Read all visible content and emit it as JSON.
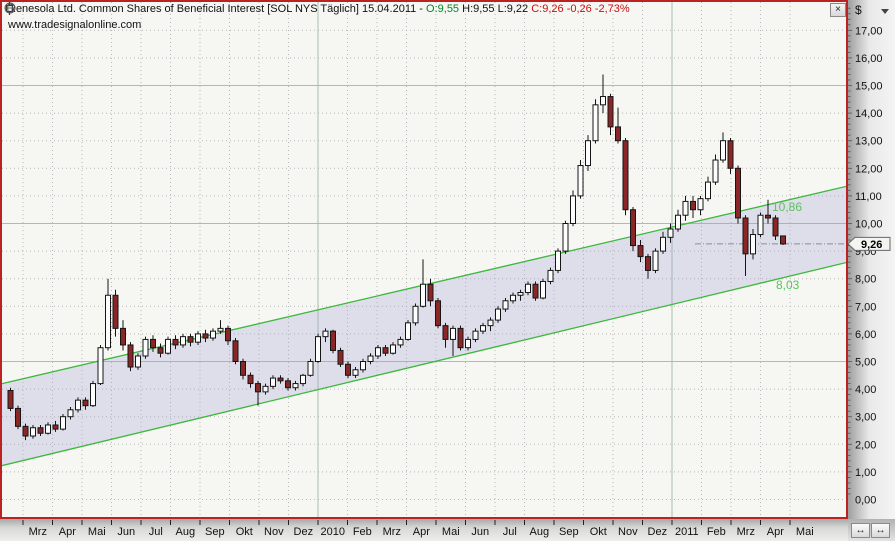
{
  "titlebar": {
    "title": "Renesola Ltd. Common Shares of Beneficial Interest [SOL NYS  Täglich] 15.04.2011 - ",
    "open_part": "O:9,55",
    "mid_part": " H:9,55 L:9,22 ",
    "close_part": "C:9,26 -0,26 -2,73%",
    "watermark": "www.tradesignalonline.com",
    "close_button": "×"
  },
  "price_axis": {
    "currency": "$",
    "labels": [
      "17,00",
      "16,00",
      "15,00",
      "14,00",
      "13,00",
      "12,00",
      "11,00",
      "10,00",
      "9,00",
      "8,00",
      "7,00",
      "6,00",
      "5,00",
      "4,00",
      "3,00",
      "2,00",
      "1,00",
      "0,00"
    ],
    "current_price_label": "9,26"
  },
  "time_axis": {
    "months": [
      "Mrz",
      "Apr",
      "Mai",
      "Jun",
      "Jul",
      "Aug",
      "Sep",
      "Okt",
      "Nov",
      "Dez",
      "2010",
      "Feb",
      "Mrz",
      "Apr",
      "Mai",
      "Jun",
      "Jul",
      "Aug",
      "Sep",
      "Okt",
      "Nov",
      "Dez",
      "2011",
      "Feb",
      "Mrz",
      "Apr",
      "Mai"
    ]
  },
  "corner": {
    "scroll_left": "↔",
    "scroll_right": "↔"
  },
  "colors": {
    "border_red": "#bb2222",
    "grid_minor": "#b8b8b8",
    "grid_major": "#a9bfa9",
    "channel_line": "#3cb83c",
    "channel_fill": "#9e9ed8",
    "channel_label": "#5cc25c",
    "candle_up": "#fdfdfd",
    "candle_down": "#8b2626",
    "candle_outline": "#151515",
    "open_green": "#00872c",
    "close_red": "#cc1111"
  },
  "chart_data": {
    "type": "candlestick",
    "title": "Renesola Ltd. Common Shares of Beneficial Interest [SOL NYS Täglich]",
    "date": "15.04.2011",
    "ohlc_today": {
      "open": 9.55,
      "high": 9.55,
      "low": 9.22,
      "close": 9.26,
      "change": -0.26,
      "change_pct": -2.73
    },
    "ylabel": "$",
    "ylim": [
      0,
      17.8
    ],
    "y_ticks": [
      0,
      1,
      2,
      3,
      4,
      5,
      6,
      7,
      8,
      9,
      10,
      11,
      12,
      13,
      14,
      15,
      16,
      17
    ],
    "x_months": [
      "Mrz",
      "Apr",
      "Mai",
      "Jun",
      "Jul",
      "Aug",
      "Sep",
      "Okt",
      "Nov",
      "Dez",
      "2010",
      "Feb",
      "Mrz",
      "Apr",
      "Mai",
      "Jun",
      "Jul",
      "Aug",
      "Sep",
      "Okt",
      "Nov",
      "Dez",
      "2011",
      "Feb",
      "Mrz",
      "Apr",
      "Mai"
    ],
    "last_price": 9.26,
    "regression_channel": {
      "upper_start_price": 4.18,
      "upper_end_price": 11.36,
      "lower_start_price": 1.21,
      "lower_end_price": 8.6,
      "label_upper": "10,86",
      "label_lower": "8,03"
    },
    "ohlc_weekly": [
      [
        3.95,
        4.05,
        3.2,
        3.3
      ],
      [
        3.3,
        3.4,
        2.55,
        2.65
      ],
      [
        2.65,
        2.75,
        2.15,
        2.3
      ],
      [
        2.3,
        2.7,
        2.2,
        2.6
      ],
      [
        2.6,
        2.7,
        2.3,
        2.4
      ],
      [
        2.4,
        2.8,
        2.35,
        2.7
      ],
      [
        2.7,
        2.85,
        2.45,
        2.55
      ],
      [
        2.55,
        3.1,
        2.5,
        3.0
      ],
      [
        3.0,
        3.35,
        2.9,
        3.25
      ],
      [
        3.25,
        3.7,
        3.15,
        3.6
      ],
      [
        3.6,
        3.7,
        3.25,
        3.4
      ],
      [
        3.4,
        4.3,
        3.35,
        4.2
      ],
      [
        4.2,
        5.6,
        4.15,
        5.5
      ],
      [
        5.5,
        8.0,
        5.4,
        7.4
      ],
      [
        7.4,
        7.6,
        5.9,
        6.2
      ],
      [
        6.2,
        6.5,
        5.4,
        5.6
      ],
      [
        5.6,
        5.7,
        4.65,
        4.8
      ],
      [
        4.8,
        5.3,
        4.7,
        5.2
      ],
      [
        5.2,
        5.9,
        5.1,
        5.8
      ],
      [
        5.8,
        5.95,
        5.35,
        5.5
      ],
      [
        5.5,
        5.65,
        5.15,
        5.3
      ],
      [
        5.3,
        5.9,
        5.25,
        5.8
      ],
      [
        5.8,
        5.95,
        5.45,
        5.6
      ],
      [
        5.6,
        6.0,
        5.5,
        5.9
      ],
      [
        5.9,
        6.0,
        5.55,
        5.7
      ],
      [
        5.7,
        6.1,
        5.6,
        6.0
      ],
      [
        6.0,
        6.15,
        5.7,
        5.85
      ],
      [
        5.85,
        6.2,
        5.75,
        6.1
      ],
      [
        6.1,
        6.5,
        6.0,
        6.2
      ],
      [
        6.2,
        6.3,
        5.6,
        5.75
      ],
      [
        5.75,
        5.85,
        4.9,
        5.0
      ],
      [
        5.0,
        5.1,
        4.35,
        4.5
      ],
      [
        4.5,
        4.6,
        4.05,
        4.2
      ],
      [
        4.2,
        4.3,
        3.4,
        3.9
      ],
      [
        3.9,
        4.2,
        3.8,
        4.1
      ],
      [
        4.1,
        4.5,
        4.0,
        4.4
      ],
      [
        4.4,
        4.5,
        4.2,
        4.3
      ],
      [
        4.3,
        4.4,
        3.95,
        4.05
      ],
      [
        4.05,
        4.3,
        3.95,
        4.2
      ],
      [
        4.2,
        4.55,
        4.1,
        4.5
      ],
      [
        4.5,
        5.1,
        4.45,
        5.0
      ],
      [
        5.0,
        6.0,
        4.95,
        5.9
      ],
      [
        5.9,
        6.2,
        5.7,
        6.1
      ],
      [
        6.1,
        6.15,
        5.3,
        5.4
      ],
      [
        5.4,
        5.5,
        4.8,
        4.9
      ],
      [
        4.9,
        5.0,
        4.4,
        4.5
      ],
      [
        4.5,
        4.8,
        4.4,
        4.7
      ],
      [
        4.7,
        5.1,
        4.6,
        5.0
      ],
      [
        5.0,
        5.3,
        4.9,
        5.2
      ],
      [
        5.2,
        5.6,
        5.1,
        5.5
      ],
      [
        5.5,
        5.6,
        5.2,
        5.3
      ],
      [
        5.3,
        5.7,
        5.25,
        5.6
      ],
      [
        5.6,
        5.9,
        5.5,
        5.8
      ],
      [
        5.8,
        6.5,
        5.75,
        6.4
      ],
      [
        6.4,
        7.1,
        6.3,
        7.0
      ],
      [
        7.0,
        8.7,
        6.95,
        7.8
      ],
      [
        7.8,
        8.0,
        7.0,
        7.2
      ],
      [
        7.2,
        7.3,
        6.2,
        6.3
      ],
      [
        6.3,
        6.4,
        5.5,
        5.8
      ],
      [
        5.8,
        6.3,
        5.2,
        6.2
      ],
      [
        6.2,
        6.3,
        5.4,
        5.5
      ],
      [
        5.5,
        5.9,
        5.4,
        5.8
      ],
      [
        5.8,
        6.2,
        5.7,
        6.1
      ],
      [
        6.1,
        6.4,
        6.0,
        6.3
      ],
      [
        6.3,
        6.6,
        6.1,
        6.5
      ],
      [
        6.5,
        7.0,
        6.4,
        6.9
      ],
      [
        6.9,
        7.3,
        6.8,
        7.2
      ],
      [
        7.2,
        7.5,
        7.1,
        7.4
      ],
      [
        7.4,
        7.6,
        7.2,
        7.5
      ],
      [
        7.5,
        7.9,
        7.4,
        7.8
      ],
      [
        7.8,
        7.9,
        7.2,
        7.3
      ],
      [
        7.3,
        8.0,
        7.25,
        7.9
      ],
      [
        7.9,
        8.4,
        7.8,
        8.3
      ],
      [
        8.3,
        9.1,
        8.2,
        9.0
      ],
      [
        9.0,
        10.1,
        8.9,
        10.0
      ],
      [
        10.0,
        11.2,
        9.9,
        11.0
      ],
      [
        11.0,
        12.3,
        10.9,
        12.1
      ],
      [
        12.1,
        13.2,
        11.9,
        13.0
      ],
      [
        13.0,
        14.5,
        12.9,
        14.3
      ],
      [
        14.3,
        15.4,
        14.0,
        14.6
      ],
      [
        14.6,
        14.7,
        13.2,
        13.5
      ],
      [
        13.5,
        14.2,
        12.9,
        13.0
      ],
      [
        13.0,
        13.1,
        10.3,
        10.5
      ],
      [
        10.5,
        10.6,
        9.0,
        9.2
      ],
      [
        9.2,
        9.4,
        8.6,
        8.8
      ],
      [
        8.8,
        8.9,
        8.0,
        8.3
      ],
      [
        8.3,
        9.1,
        8.2,
        9.0
      ],
      [
        9.0,
        9.7,
        8.9,
        9.5
      ],
      [
        9.5,
        10.0,
        9.3,
        9.8
      ],
      [
        9.8,
        10.5,
        9.7,
        10.3
      ],
      [
        10.3,
        11.0,
        10.1,
        10.8
      ],
      [
        10.8,
        11.0,
        10.2,
        10.5
      ],
      [
        10.5,
        11.0,
        10.3,
        10.9
      ],
      [
        10.9,
        11.7,
        10.8,
        11.5
      ],
      [
        11.5,
        12.5,
        11.4,
        12.3
      ],
      [
        12.3,
        13.3,
        12.2,
        13.0
      ],
      [
        13.0,
        13.1,
        11.8,
        12.0
      ],
      [
        12.0,
        12.1,
        10.0,
        10.2
      ],
      [
        10.2,
        10.3,
        8.1,
        8.9
      ],
      [
        8.9,
        9.8,
        8.7,
        9.6
      ],
      [
        9.6,
        10.4,
        9.5,
        10.3
      ],
      [
        10.3,
        10.86,
        10.0,
        10.2
      ],
      [
        10.2,
        10.3,
        9.4,
        9.55
      ],
      [
        9.55,
        9.55,
        9.22,
        9.26
      ]
    ]
  }
}
